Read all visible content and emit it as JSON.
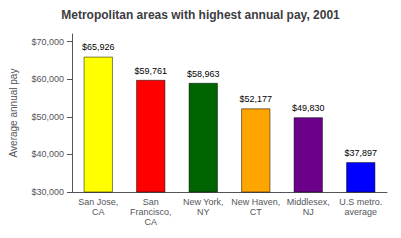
{
  "chart_data": {
    "type": "bar",
    "title": "Metropolitan areas with highest annual pay, 2001",
    "categories": [
      "San Jose,\nCA",
      "San\nFrancisco,\nCA",
      "New York,\nNY",
      "New Haven,\nCT",
      "Middlesex,\nNJ",
      "U.S metro.\naverage"
    ],
    "values": [
      65926,
      59761,
      58963,
      52177,
      49830,
      37897
    ],
    "value_labels": [
      "$65,926",
      "$59,761",
      "$58,963",
      "$52,177",
      "$49,830",
      "$37,897"
    ],
    "colors": [
      "#FFFF00",
      "#FF0000",
      "#006400",
      "#FFA500",
      "#6B008B",
      "#0000FF"
    ],
    "ylabel": "Average annual pay",
    "ylim": [
      30000,
      72000
    ],
    "yticks": [
      {
        "value": 30000,
        "label": "$30,000"
      },
      {
        "value": 40000,
        "label": "$40,000"
      },
      {
        "value": 50000,
        "label": "$50,000"
      },
      {
        "value": 60000,
        "label": "$60,000"
      },
      {
        "value": 70000,
        "label": "$70,000"
      }
    ],
    "data_labels": true,
    "grid": false
  }
}
